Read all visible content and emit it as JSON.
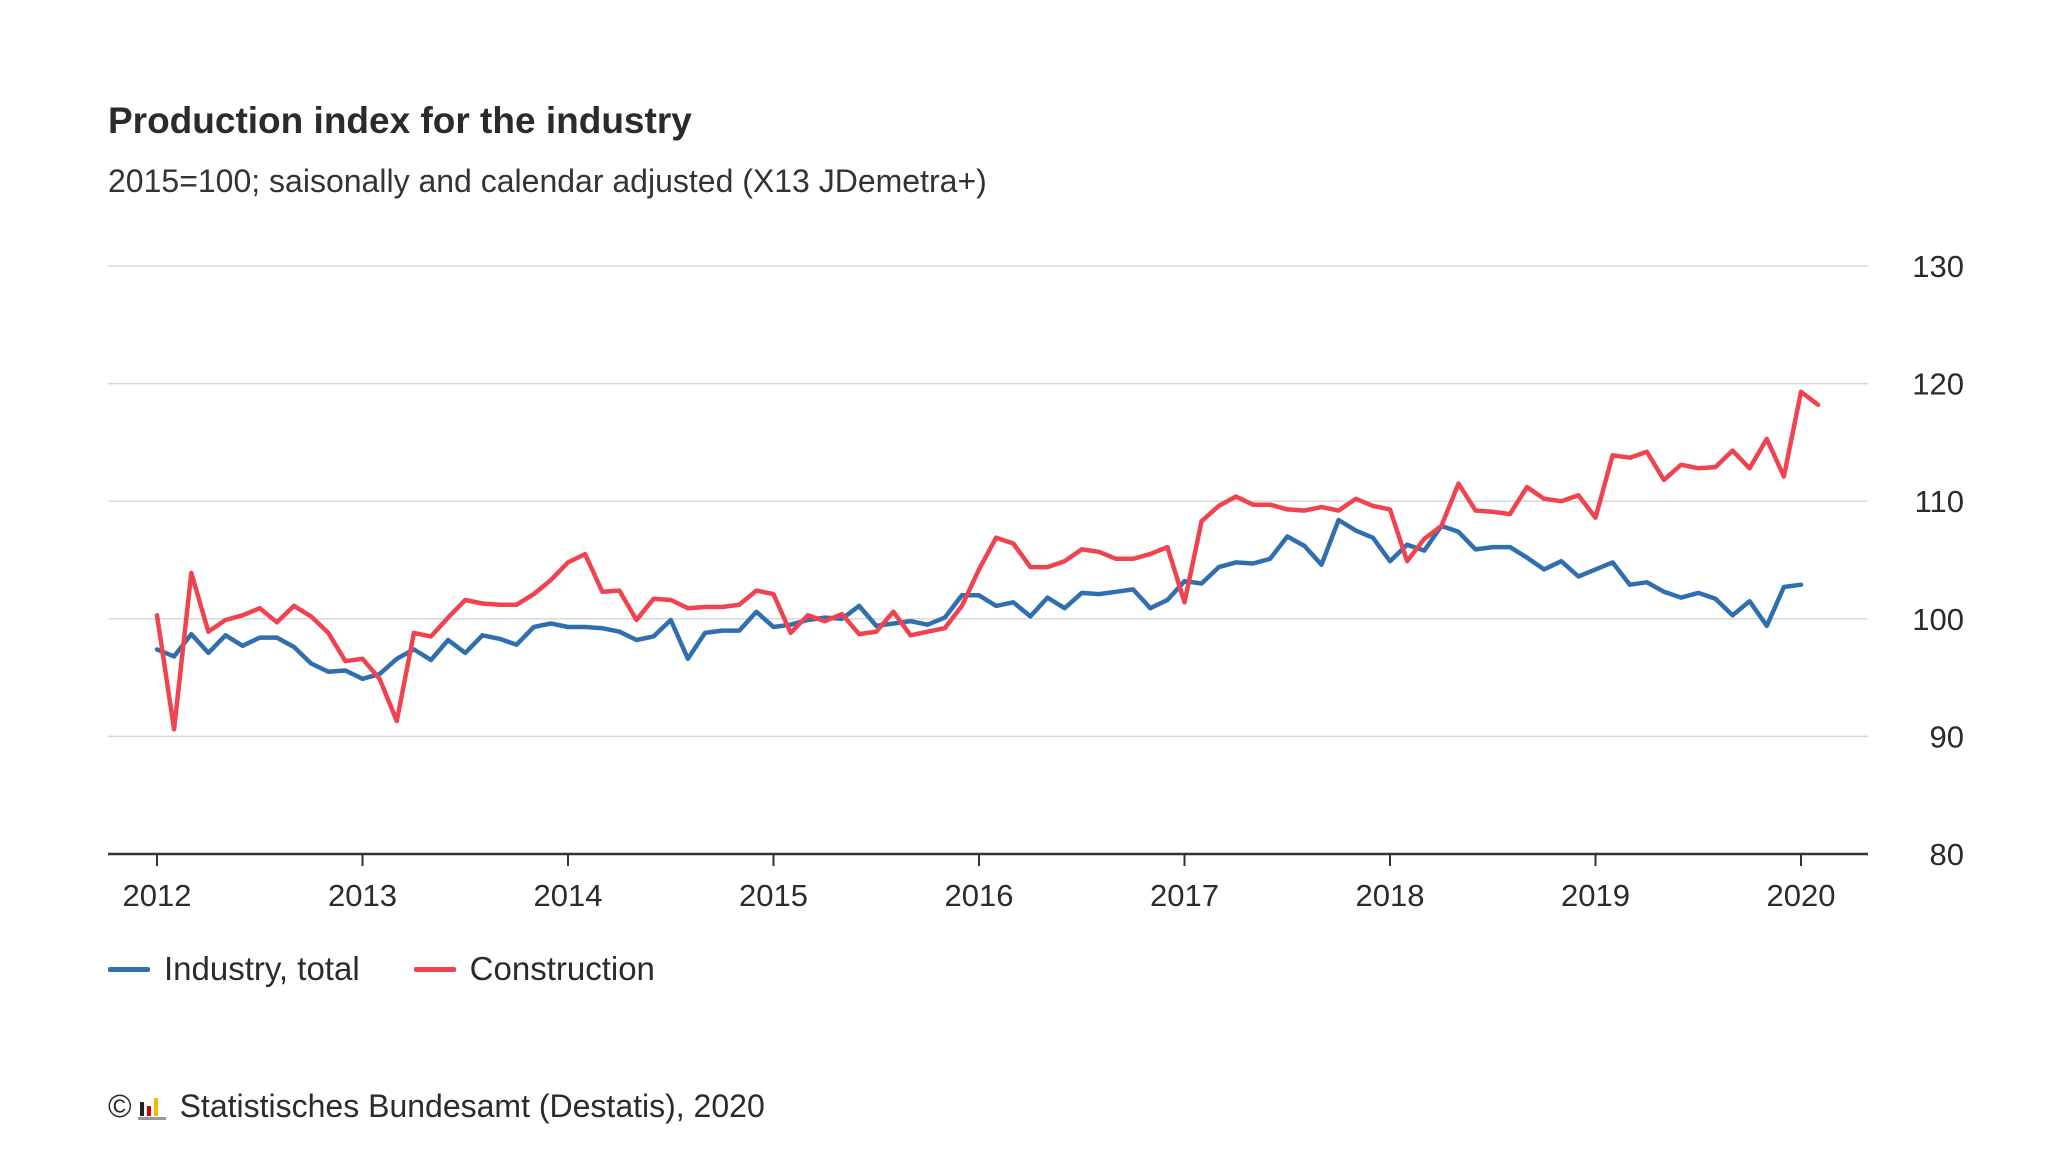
{
  "header": {
    "title": "Production index for the industry",
    "subtitle": "2015=100; saisonally and calendar adjusted (X13 JDemetra+)"
  },
  "legend": {
    "items": [
      {
        "label": "Industry, total",
        "color": "#2f6fb0"
      },
      {
        "label": "Construction",
        "color": "#f0424f"
      }
    ]
  },
  "footer": {
    "copyright_symbol": "©",
    "source": "Statistisches Bundesamt (Destatis), 2020"
  },
  "chart_data": {
    "type": "line",
    "title": "Production index for the industry",
    "subtitle": "2015=100; saisonally and calendar adjusted (X13 JDemetra+)",
    "x_start": "2012-01",
    "frequency": "monthly",
    "x_ticks": [
      "2012",
      "2013",
      "2014",
      "2015",
      "2016",
      "2017",
      "2018",
      "2019",
      "2020"
    ],
    "ylim": [
      80,
      130
    ],
    "y_ticks": [
      80,
      90,
      100,
      110,
      120,
      130
    ],
    "grid": true,
    "legend_position": "bottom-left",
    "series": [
      {
        "name": "Industry, total",
        "color": "#2f6fb0",
        "values": [
          97.4,
          96.8,
          98.7,
          97.1,
          98.6,
          97.7,
          98.4,
          98.4,
          97.6,
          96.2,
          95.5,
          95.6,
          94.9,
          95.3,
          96.6,
          97.4,
          96.5,
          98.2,
          97.1,
          98.6,
          98.3,
          97.8,
          99.3,
          99.6,
          99.3,
          99.3,
          99.2,
          98.9,
          98.2,
          98.5,
          99.9,
          96.6,
          98.8,
          99.0,
          99.0,
          100.6,
          99.3,
          99.5,
          99.9,
          100.1,
          100.0,
          101.1,
          99.4,
          99.6,
          99.8,
          99.5,
          100.1,
          102.0,
          102.0,
          101.1,
          101.4,
          100.2,
          101.8,
          100.9,
          102.2,
          102.1,
          102.3,
          102.5,
          100.9,
          101.6,
          103.2,
          103.0,
          104.4,
          104.8,
          104.7,
          105.1,
          107.0,
          106.2,
          104.6,
          108.4,
          107.5,
          106.9,
          104.9,
          106.3,
          105.8,
          107.9,
          107.4,
          105.9,
          106.1,
          106.1,
          105.2,
          104.2,
          104.9,
          103.6,
          104.2,
          104.8,
          102.9,
          103.1,
          102.3,
          101.8,
          102.2,
          101.7,
          100.3,
          101.5,
          99.4,
          102.7,
          102.9
        ]
      },
      {
        "name": "Construction",
        "color": "#f0424f",
        "values": [
          100.3,
          90.6,
          103.9,
          98.9,
          99.9,
          100.3,
          100.9,
          99.7,
          101.1,
          100.2,
          98.8,
          96.4,
          96.6,
          94.9,
          91.3,
          98.8,
          98.5,
          100.1,
          101.6,
          101.3,
          101.2,
          101.2,
          102.1,
          103.3,
          104.8,
          105.5,
          102.3,
          102.4,
          99.9,
          101.7,
          101.6,
          100.9,
          101.0,
          101.0,
          101.2,
          102.4,
          102.1,
          98.8,
          100.3,
          99.8,
          100.4,
          98.7,
          98.9,
          100.6,
          98.6,
          98.9,
          99.2,
          101.1,
          104.2,
          106.9,
          106.4,
          104.4,
          104.4,
          104.9,
          105.9,
          105.7,
          105.1,
          105.1,
          105.5,
          106.1,
          101.4,
          108.3,
          109.6,
          110.4,
          109.7,
          109.7,
          109.3,
          109.2,
          109.5,
          109.2,
          110.2,
          109.6,
          109.3,
          104.9,
          106.8,
          107.9,
          111.5,
          109.2,
          109.1,
          108.9,
          111.2,
          110.2,
          110.0,
          110.5,
          108.6,
          113.9,
          113.7,
          114.2,
          111.8,
          113.1,
          112.8,
          112.9,
          114.3,
          112.8,
          115.3,
          112.1,
          119.3,
          118.2
        ]
      }
    ]
  }
}
